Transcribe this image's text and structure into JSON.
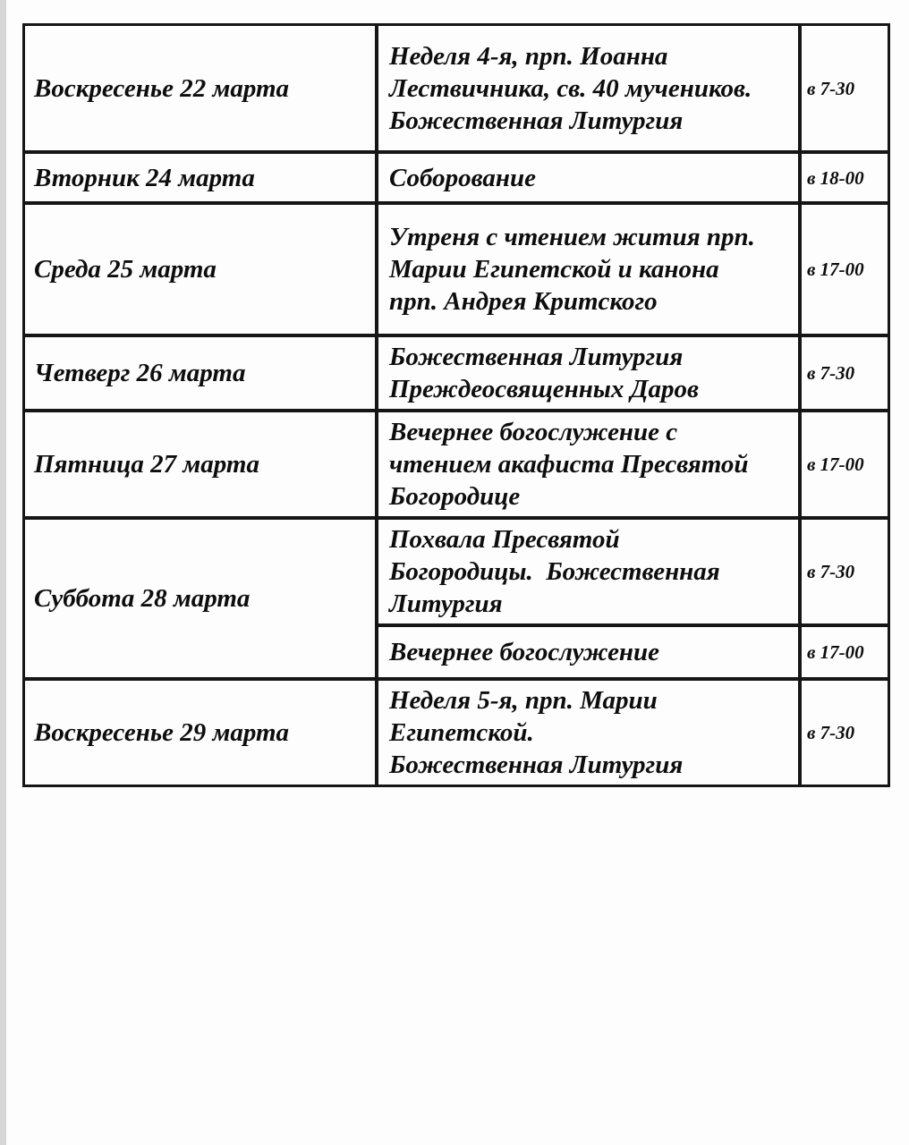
{
  "schedule": {
    "rows": [
      {
        "date": "Воскресенье 22 марта",
        "services": [
          {
            "description": "Неделя 4-я, прп. Иоанна\nЛествичника, св. 40 мучеников.\nБожественная Литургия",
            "time": "в 7-30"
          }
        ]
      },
      {
        "date": "Вторник 24 марта",
        "services": [
          {
            "description": "Соборование",
            "time": "в 18-00"
          }
        ]
      },
      {
        "date": "Среда 25 марта",
        "services": [
          {
            "description": "Утреня с чтением жития прп.\nМарии Египетской и канона\nпрп. Андрея Критского",
            "time": "в 17-00"
          }
        ]
      },
      {
        "date": "Четверг 26 марта",
        "services": [
          {
            "description": "Божественная Литургия\nПреждеосвященных Даров",
            "time": "в 7-30"
          }
        ]
      },
      {
        "date": "Пятница 27 марта",
        "services": [
          {
            "description": "Вечернее богослужение с\nчтением акафиста Пресвятой\nБогородице",
            "time": "в 17-00"
          }
        ]
      },
      {
        "date": "Суббота 28 марта",
        "services": [
          {
            "description": "Похвала Пресвятой\nБогородицы.  Божественная\nЛитургия",
            "time": "в 7-30"
          },
          {
            "description": "Вечернее богослужение",
            "time": "в 17-00"
          }
        ]
      },
      {
        "date": "Воскресенье 29 марта",
        "services": [
          {
            "description": "Неделя 5-я, прп. Марии\nЕгипетской.\nБожественная Литургия",
            "time": "в 7-30"
          }
        ]
      }
    ]
  }
}
